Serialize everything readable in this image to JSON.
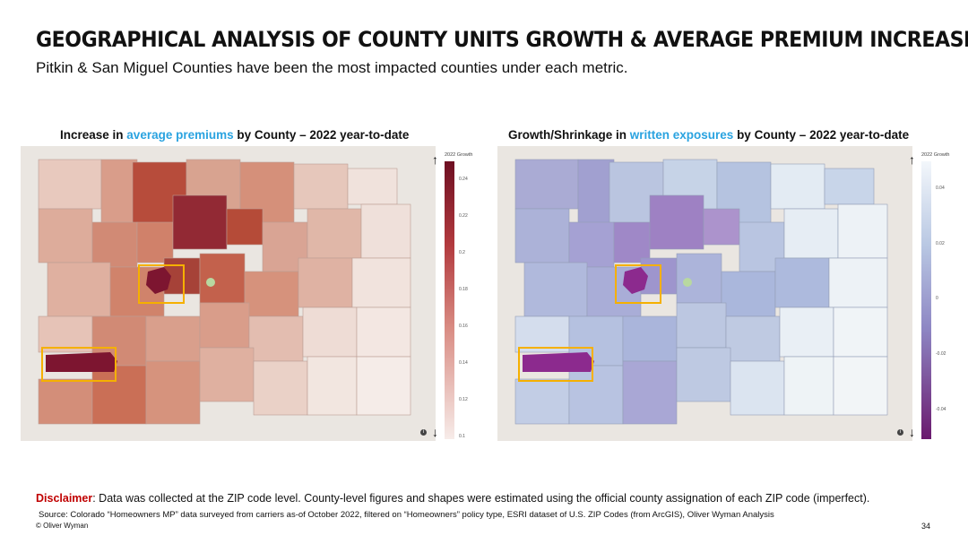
{
  "slide": {
    "title": "GEOGRAPHICAL ANALYSIS OF COUNTY UNITS GROWTH & AVERAGE PREMIUM INCREASE",
    "subtitle": "Pitkin & San Miguel Counties have been the most impacted counties under each metric.",
    "page_number": "34",
    "copyright": "© Oliver Wyman"
  },
  "left_map": {
    "title_pre": "Increase in ",
    "title_accent": "average premiums",
    "title_post": " by County – 2022 year-to-date",
    "legend_title": "2022 Growth",
    "legend_ticks": [
      "0.24",
      "0.22",
      "0.2",
      "0.18",
      "0.16",
      "0.14",
      "0.12",
      "0.1"
    ],
    "info_icon": "i"
  },
  "right_map": {
    "title_pre": "Growth/Shrinkage in ",
    "title_accent": "written exposures",
    "title_post": " by County – 2022 year-to-date",
    "legend_title": "2022 Growth",
    "legend_ticks": [
      "0.04",
      "0.02",
      "0",
      "-0.02",
      "-0.04"
    ],
    "info_icon": "i"
  },
  "footer": {
    "disclaimer_label": "Disclaimer",
    "disclaimer_text": ": Data was collected at the ZIP code level. County-level figures and shapes were estimated using the official county assignation of each ZIP code (imperfect).",
    "source": "Source: Colorado “Homeowners MP” data surveyed from carriers as-of October 2022, filtered on “Homeowners” policy type, ESRI dataset of U.S. ZIP Codes (from ArcGIS), Oliver Wyman Analysis"
  },
  "colors": {
    "accent_blue": "#2aa3e0",
    "disclaimer_red": "#c00000",
    "highlight_box": "#f5b000",
    "premium_high": "#6e0f22",
    "premium_low": "#f7ece9",
    "exposure_high": "#f3f7fb",
    "exposure_low": "#6a1a6e"
  },
  "icons": [
    "info-icon",
    "arrow-up-icon",
    "arrow-down-icon"
  ]
}
